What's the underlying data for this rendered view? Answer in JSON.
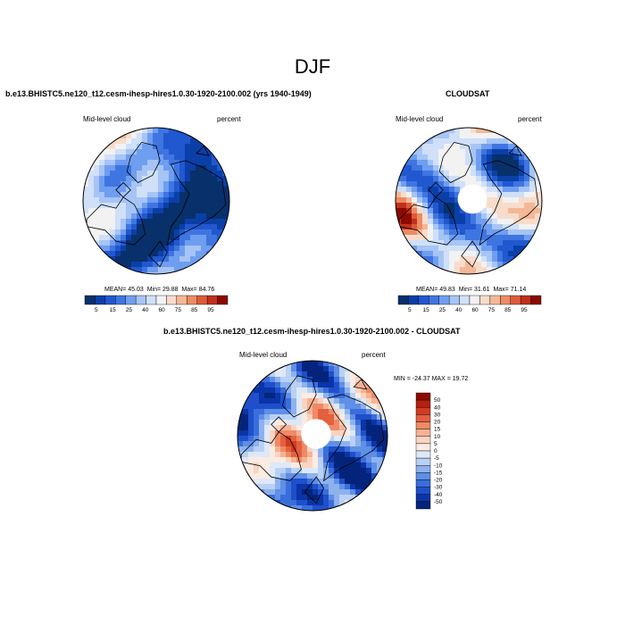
{
  "figure": {
    "title": "DJF",
    "colors": {
      "land": "#000000",
      "missing": "#ffffff"
    }
  },
  "chart_data": [
    {
      "type": "heatmap",
      "projection": "north polar stereographic",
      "title": "b.e13.BHISTC5.ne120_t12.cesm-ihesp-hires1.0.30-1920-2100.002 (yrs 1940-1949)",
      "left_label": "Mid-level cloud",
      "right_label": "percent",
      "stats": {
        "mean_label": "MEAN=",
        "mean": "45.03",
        "min_label": "Min=",
        "min": "29.88",
        "max_label": "Max=",
        "max": "84.76"
      },
      "colorbar": {
        "orientation": "horizontal",
        "levels": [
          "5",
          "15",
          "25",
          "40",
          "60",
          "75",
          "85",
          "95"
        ],
        "colors": [
          "#08306b",
          "#0b3fa8",
          "#2158d0",
          "#3f75e0",
          "#6f9ef0",
          "#a6c4f5",
          "#cfe0f8",
          "#f2f2f2",
          "#f8dccb",
          "#f4b896",
          "#ec8b64",
          "#dd5a3a",
          "#c0311c",
          "#8c0a00"
        ]
      },
      "field": {
        "base_value": 28,
        "range": [
          5,
          95
        ],
        "missing_pole": false
      }
    },
    {
      "type": "heatmap",
      "projection": "north polar stereographic",
      "title": "CLOUDSAT",
      "left_label": "Mid-level cloud",
      "right_label": "percent",
      "stats": {
        "mean_label": "MEAN=",
        "mean": "49.83",
        "min_label": "Min=",
        "min": "31.61",
        "max_label": "Max=",
        "max": "71.14"
      },
      "colorbar": {
        "orientation": "horizontal",
        "levels": [
          "5",
          "15",
          "25",
          "40",
          "60",
          "75",
          "85",
          "95"
        ],
        "colors": [
          "#08306b",
          "#0b3fa8",
          "#2158d0",
          "#3f75e0",
          "#6f9ef0",
          "#a6c4f5",
          "#cfe0f8",
          "#f2f2f2",
          "#f8dccb",
          "#f4b896",
          "#ec8b64",
          "#dd5a3a",
          "#c0311c",
          "#8c0a00"
        ]
      },
      "field": {
        "base_value": 40,
        "range": [
          5,
          95
        ],
        "missing_pole": true
      }
    },
    {
      "type": "heatmap",
      "projection": "north polar stereographic",
      "title": "b.e13.BHISTC5.ne120_t12.cesm-ihesp-hires1.0.30-1920-2100.002 - CLOUDSAT",
      "left_label": "Mid-level cloud",
      "right_label": "percent",
      "stats": {
        "label": "MIN = -24.37 MAX =  19.72",
        "min": "-24.37",
        "max": "19.72"
      },
      "colorbar": {
        "orientation": "vertical",
        "levels": [
          "50",
          "40",
          "30",
          "20",
          "15",
          "10",
          "5",
          "0",
          "-5",
          "-10",
          "-15",
          "-20",
          "-30",
          "-40",
          "-50"
        ],
        "colors": [
          "#8c0a00",
          "#b5200f",
          "#d13b22",
          "#e3603f",
          "#ef8a66",
          "#f6b294",
          "#f9d4c0",
          "#fbebe2",
          "#dde9f8",
          "#b9d1f4",
          "#8db2ee",
          "#5f8fe6",
          "#3a6edb",
          "#1f4fca",
          "#0b34a8",
          "#03247a"
        ]
      },
      "field": {
        "base_value": -10,
        "range": [
          -50,
          50
        ],
        "missing_pole": true
      }
    }
  ]
}
